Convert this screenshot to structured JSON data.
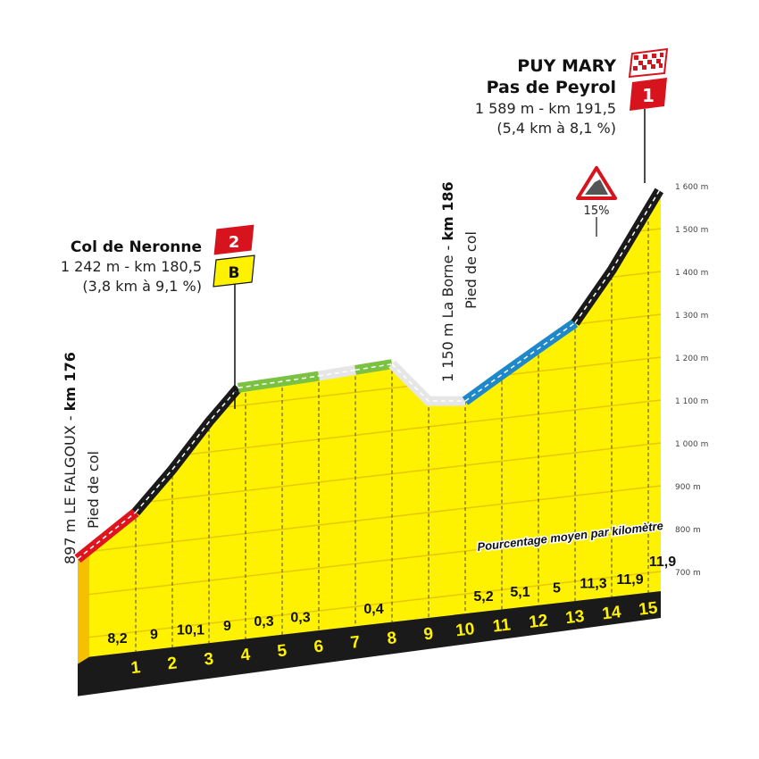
{
  "chart_data": {
    "type": "area",
    "title": "",
    "ylabel": "",
    "y_axis_side": "right",
    "ylim": [
      700,
      1600
    ],
    "y_ticks": [
      "700 m",
      "800 m",
      "900 m",
      "1 000 m",
      "1 100 m",
      "1 200 m",
      "1 300 m",
      "1 400 m",
      "1 500 m",
      "1 600 m"
    ],
    "y_tick_values": [
      700,
      800,
      900,
      1000,
      1100,
      1200,
      1300,
      1400,
      1500,
      1600
    ],
    "x_ticks": [
      "1",
      "2",
      "3",
      "4",
      "5",
      "6",
      "7",
      "8",
      "9",
      "10",
      "11",
      "12",
      "13",
      "14",
      "15"
    ],
    "grades_title": "Pourcentage moyen par kilomètre",
    "grades": [
      "8,2",
      "9",
      "10,1",
      "9",
      "0,3",
      "0,3",
      "",
      "0,4",
      "",
      "",
      "5,2",
      "5,1",
      "5",
      "11,3",
      "11,9",
      "11,9"
    ],
    "profile": [
      {
        "km": 0,
        "elev": 897
      },
      {
        "km": 1,
        "elev": 979
      },
      {
        "km": 2,
        "elev": 1069
      },
      {
        "km": 3,
        "elev": 1170
      },
      {
        "km": 3.8,
        "elev": 1242
      },
      {
        "km": 5,
        "elev": 1245
      },
      {
        "km": 6,
        "elev": 1248
      },
      {
        "km": 7,
        "elev": 1252
      },
      {
        "km": 8,
        "elev": 1256
      },
      {
        "km": 9,
        "elev": 1160
      },
      {
        "km": 10,
        "elev": 1150
      },
      {
        "km": 11,
        "elev": 1202
      },
      {
        "km": 12,
        "elev": 1253
      },
      {
        "km": 13,
        "elev": 1303
      },
      {
        "km": 14,
        "elev": 1416
      },
      {
        "km": 15.3,
        "elev": 1589
      }
    ],
    "segments": [
      {
        "from": 0,
        "to": 1,
        "color": "#e0141e"
      },
      {
        "from": 1,
        "to": 3.8,
        "color": "#1a1a1a"
      },
      {
        "from": 3.8,
        "to": 6,
        "color": "#7cc242"
      },
      {
        "from": 6,
        "to": 7,
        "color": "#e6e6e6"
      },
      {
        "from": 7,
        "to": 8,
        "color": "#7cc242"
      },
      {
        "from": 8,
        "to": 10,
        "color": "#e6e6e6"
      },
      {
        "from": 10,
        "to": 13,
        "color": "#1e88c8"
      },
      {
        "from": 13,
        "to": 15.3,
        "color": "#1a1a1a"
      }
    ],
    "colors": {
      "fill": "#fff200",
      "side": "#f5c000",
      "base": "#1a1a1a",
      "km_text": "#fff200",
      "grid": "#e8c800"
    }
  },
  "annotations": {
    "start": {
      "line1": "897 m LE FALGOUX - ",
      "line1_bold": "km 176",
      "line2": "Pied de col"
    },
    "la_borne": {
      "line1": "1 150 m La Borne - ",
      "line1_bold": "km 186",
      "line2": "Pied de col"
    },
    "col_de_neronne": {
      "name": "Col de Neronne",
      "detail": "1 242 m - km 180,5",
      "climb": "(3,8 km à 9,1 %)",
      "category": "2",
      "bonus": "B"
    },
    "puy_mary": {
      "name": "PUY MARY",
      "name2": "Pas de Peyrol",
      "detail": "1 589 m -  km 191,5",
      "climb": "(5,4 km à 8,1 %)",
      "category": "1"
    },
    "steep_warning": {
      "icon": "steep-gradient-warning-icon",
      "value": "15%"
    }
  }
}
